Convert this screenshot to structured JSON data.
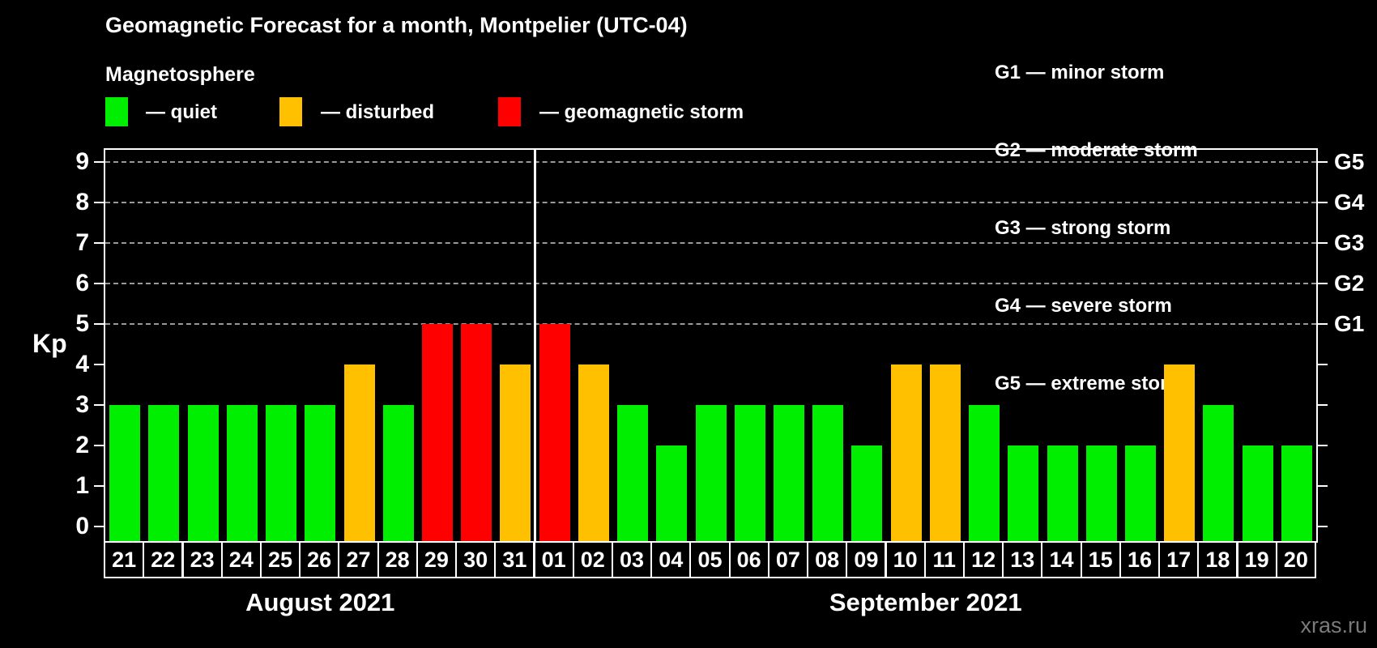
{
  "title": "Geomagnetic Forecast for a month, Montpelier (UTC-04)",
  "subtitle": "Magnetosphere",
  "legend": {
    "items": [
      {
        "swatch": "quiet",
        "label": "— quiet"
      },
      {
        "swatch": "disturbed",
        "label": "— disturbed"
      },
      {
        "swatch": "storm",
        "label": "— geomagnetic storm"
      }
    ]
  },
  "g_legend": [
    "G1 — minor storm",
    "G2 — moderate storm",
    "G3 — strong storm",
    "G4 — severe storm",
    "G5 — extreme storm"
  ],
  "colors": {
    "quiet": "#00ee00",
    "disturbed": "#ffc000",
    "storm": "#ff0000",
    "grid": "#999999",
    "axis": "#ffffff",
    "watermark": "#7a7a7a"
  },
  "watermark": "xras.ru",
  "chart_data": {
    "type": "bar",
    "title": "Geomagnetic Forecast for a month, Montpelier (UTC-04)",
    "ylabel": "Kp",
    "ylim": [
      0,
      9
    ],
    "yticks": [
      0,
      1,
      2,
      3,
      4,
      5,
      6,
      7,
      8,
      9
    ],
    "gridlines_at": [
      5,
      6,
      7,
      8,
      9
    ],
    "grid": true,
    "right_axis_labels": {
      "5": "G1",
      "6": "G2",
      "7": "G3",
      "8": "G4",
      "9": "G5"
    },
    "months": [
      {
        "label": "August 2021",
        "days": 11
      },
      {
        "label": "September 2021",
        "days": 20
      }
    ],
    "categories": [
      "21",
      "22",
      "23",
      "24",
      "25",
      "26",
      "27",
      "28",
      "29",
      "30",
      "31",
      "01",
      "02",
      "03",
      "04",
      "05",
      "06",
      "07",
      "08",
      "09",
      "10",
      "11",
      "12",
      "13",
      "14",
      "15",
      "16",
      "17",
      "18",
      "19",
      "20"
    ],
    "values": [
      3,
      3,
      3,
      3,
      3,
      3,
      4,
      3,
      5,
      5,
      4,
      5,
      4,
      3,
      2,
      3,
      3,
      3,
      3,
      2,
      4,
      4,
      3,
      2,
      2,
      2,
      2,
      4,
      3,
      2,
      2
    ],
    "statuses": [
      "quiet",
      "quiet",
      "quiet",
      "quiet",
      "quiet",
      "quiet",
      "disturbed",
      "quiet",
      "storm",
      "storm",
      "disturbed",
      "storm",
      "disturbed",
      "quiet",
      "quiet",
      "quiet",
      "quiet",
      "quiet",
      "quiet",
      "quiet",
      "disturbed",
      "disturbed",
      "quiet",
      "quiet",
      "quiet",
      "quiet",
      "quiet",
      "disturbed",
      "quiet",
      "quiet",
      "quiet"
    ]
  }
}
